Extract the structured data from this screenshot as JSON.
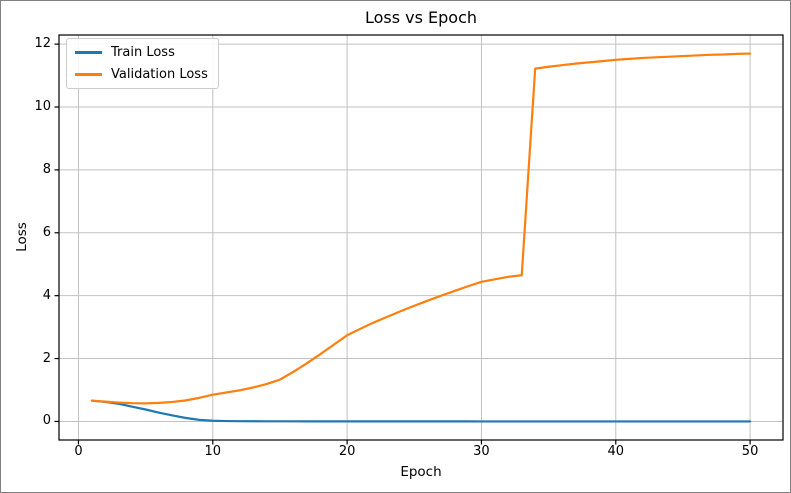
{
  "figure": {
    "background": "#ffffff",
    "border_color": "#808080",
    "spine_color": "#000000",
    "tick_color": "#000000"
  },
  "chart_data": {
    "type": "line",
    "title": "Loss vs Epoch",
    "xlabel": "Epoch",
    "ylabel": "Loss",
    "xlim": [
      -1.45,
      52.45
    ],
    "ylim": [
      -0.59,
      12.29
    ],
    "xticks": [
      0,
      10,
      20,
      30,
      40,
      50
    ],
    "yticks": [
      0,
      2,
      4,
      6,
      8,
      10,
      12
    ],
    "grid": true,
    "grid_color": "#c2c2c2",
    "legend_position": "upper-left",
    "x": [
      1,
      2,
      3,
      4,
      5,
      6,
      7,
      8,
      9,
      10,
      11,
      12,
      13,
      14,
      15,
      16,
      17,
      18,
      19,
      20,
      21,
      22,
      23,
      24,
      25,
      26,
      27,
      28,
      29,
      30,
      31,
      32,
      33,
      34,
      35,
      36,
      37,
      38,
      39,
      40,
      41,
      42,
      43,
      44,
      45,
      46,
      47,
      48,
      49,
      50
    ],
    "series": [
      {
        "name": "Train Loss",
        "color": "#1f77b4",
        "values": [
          0.66,
          0.62,
          0.56,
          0.47,
          0.38,
          0.28,
          0.19,
          0.11,
          0.05,
          0.022,
          0.012,
          0.008,
          0.006,
          0.005,
          0.004,
          0.004,
          0.003,
          0.003,
          0.003,
          0.002,
          0.002,
          0.002,
          0.002,
          0.002,
          0.002,
          0.002,
          0.002,
          0.002,
          0.002,
          0.001,
          0.001,
          0.001,
          0.001,
          0.001,
          0.001,
          0.001,
          0.001,
          0.001,
          0.001,
          0.001,
          0.001,
          0.001,
          0.001,
          0.001,
          0.001,
          0.001,
          0.001,
          0.001,
          0.001,
          0.001
        ]
      },
      {
        "name": "Validation Loss",
        "color": "#ff7f0e",
        "values": [
          0.66,
          0.63,
          0.6,
          0.58,
          0.575,
          0.59,
          0.62,
          0.67,
          0.75,
          0.85,
          0.92,
          0.99,
          1.08,
          1.19,
          1.33,
          1.58,
          1.85,
          2.14,
          2.44,
          2.74,
          2.95,
          3.15,
          3.33,
          3.51,
          3.68,
          3.84,
          4.0,
          4.15,
          4.3,
          4.44,
          4.52,
          4.6,
          4.65,
          11.22,
          11.28,
          11.33,
          11.38,
          11.42,
          11.46,
          11.5,
          11.53,
          11.56,
          11.58,
          11.6,
          11.62,
          11.64,
          11.66,
          11.67,
          11.69,
          11.7
        ]
      }
    ]
  }
}
